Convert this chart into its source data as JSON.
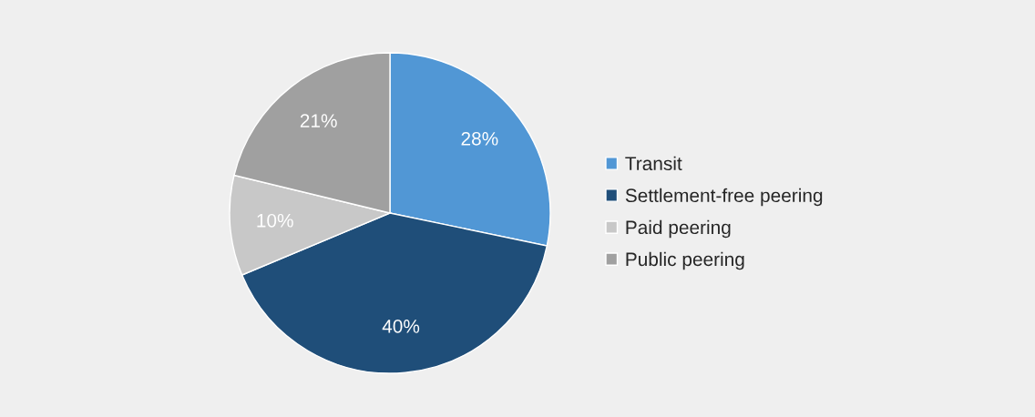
{
  "chart_data": {
    "type": "pie",
    "categories": [
      "Transit",
      "Settlement-free peering",
      "Paid peering",
      "Public peering"
    ],
    "values": [
      28,
      40,
      10,
      21
    ],
    "colors": [
      "#5197d5",
      "#1f4e79",
      "#c8c8c8",
      "#a0a0a0"
    ],
    "value_labels": [
      "28%",
      "40%",
      "10%",
      "21%"
    ],
    "legend": "right"
  }
}
